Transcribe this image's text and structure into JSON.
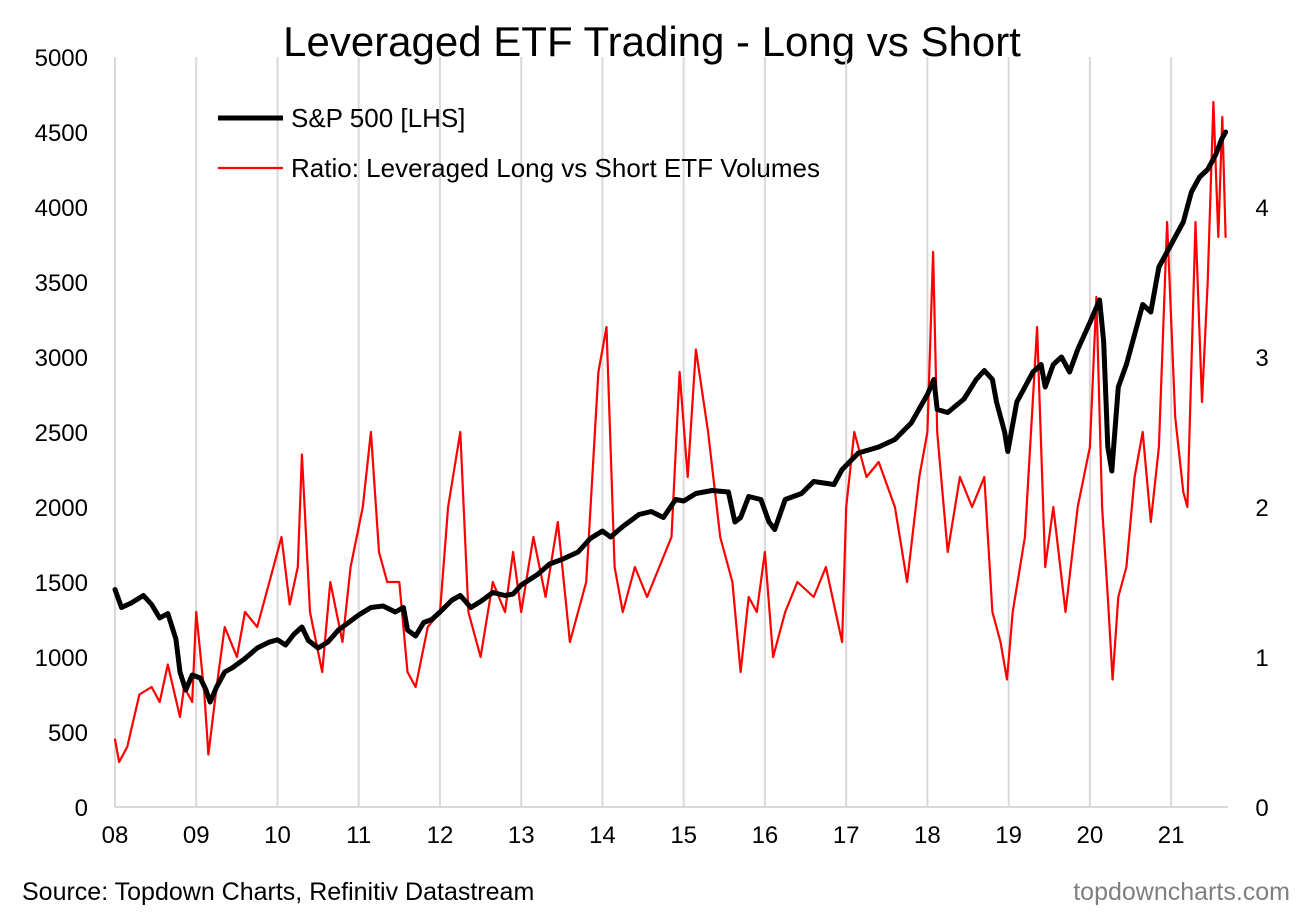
{
  "chart_data": {
    "type": "line",
    "title": "Leveraged ETF Trading - Long vs Short",
    "x_ticks": [
      "08",
      "09",
      "10",
      "11",
      "12",
      "13",
      "14",
      "15",
      "16",
      "17",
      "18",
      "19",
      "20",
      "21"
    ],
    "y_left": {
      "ticks": [
        0,
        500,
        1000,
        1500,
        2000,
        2500,
        3000,
        3500,
        4000,
        4500,
        5000
      ],
      "ylim": [
        0,
        5000
      ]
    },
    "y_right": {
      "ticks": [
        0,
        1,
        2,
        3,
        4
      ],
      "ylim": [
        0,
        5
      ]
    },
    "xlim": [
      2008.0,
      2021.7
    ],
    "grid": "vertical",
    "legend_position": "top-left",
    "series": [
      {
        "name": "S&P 500 [LHS]",
        "axis": "left",
        "color": "#000000",
        "points": [
          [
            2008.0,
            1450
          ],
          [
            2008.08,
            1330
          ],
          [
            2008.2,
            1360
          ],
          [
            2008.35,
            1410
          ],
          [
            2008.45,
            1350
          ],
          [
            2008.55,
            1260
          ],
          [
            2008.65,
            1290
          ],
          [
            2008.75,
            1120
          ],
          [
            2008.8,
            900
          ],
          [
            2008.87,
            780
          ],
          [
            2008.95,
            880
          ],
          [
            2009.05,
            860
          ],
          [
            2009.12,
            780
          ],
          [
            2009.17,
            700
          ],
          [
            2009.25,
            800
          ],
          [
            2009.35,
            900
          ],
          [
            2009.45,
            930
          ],
          [
            2009.6,
            990
          ],
          [
            2009.75,
            1060
          ],
          [
            2009.9,
            1100
          ],
          [
            2010.0,
            1115
          ],
          [
            2010.1,
            1080
          ],
          [
            2010.2,
            1150
          ],
          [
            2010.3,
            1200
          ],
          [
            2010.38,
            1110
          ],
          [
            2010.5,
            1060
          ],
          [
            2010.62,
            1100
          ],
          [
            2010.75,
            1180
          ],
          [
            2010.9,
            1240
          ],
          [
            2011.0,
            1280
          ],
          [
            2011.15,
            1330
          ],
          [
            2011.3,
            1340
          ],
          [
            2011.45,
            1300
          ],
          [
            2011.55,
            1330
          ],
          [
            2011.6,
            1180
          ],
          [
            2011.7,
            1140
          ],
          [
            2011.8,
            1230
          ],
          [
            2011.9,
            1250
          ],
          [
            2012.0,
            1300
          ],
          [
            2012.15,
            1380
          ],
          [
            2012.25,
            1410
          ],
          [
            2012.38,
            1330
          ],
          [
            2012.5,
            1370
          ],
          [
            2012.65,
            1430
          ],
          [
            2012.8,
            1410
          ],
          [
            2012.9,
            1420
          ],
          [
            2013.0,
            1480
          ],
          [
            2013.2,
            1550
          ],
          [
            2013.35,
            1620
          ],
          [
            2013.5,
            1650
          ],
          [
            2013.7,
            1700
          ],
          [
            2013.85,
            1790
          ],
          [
            2014.0,
            1840
          ],
          [
            2014.1,
            1800
          ],
          [
            2014.25,
            1870
          ],
          [
            2014.45,
            1950
          ],
          [
            2014.6,
            1970
          ],
          [
            2014.75,
            1930
          ],
          [
            2014.9,
            2050
          ],
          [
            2015.0,
            2040
          ],
          [
            2015.15,
            2090
          ],
          [
            2015.35,
            2110
          ],
          [
            2015.55,
            2100
          ],
          [
            2015.63,
            1900
          ],
          [
            2015.7,
            1930
          ],
          [
            2015.8,
            2070
          ],
          [
            2015.95,
            2050
          ],
          [
            2016.05,
            1900
          ],
          [
            2016.12,
            1850
          ],
          [
            2016.25,
            2050
          ],
          [
            2016.45,
            2090
          ],
          [
            2016.6,
            2170
          ],
          [
            2016.85,
            2150
          ],
          [
            2016.95,
            2250
          ],
          [
            2017.15,
            2360
          ],
          [
            2017.4,
            2400
          ],
          [
            2017.6,
            2450
          ],
          [
            2017.8,
            2560
          ],
          [
            2018.0,
            2750
          ],
          [
            2018.08,
            2850
          ],
          [
            2018.12,
            2650
          ],
          [
            2018.25,
            2630
          ],
          [
            2018.45,
            2720
          ],
          [
            2018.6,
            2850
          ],
          [
            2018.7,
            2910
          ],
          [
            2018.8,
            2850
          ],
          [
            2018.85,
            2700
          ],
          [
            2018.95,
            2500
          ],
          [
            2018.99,
            2370
          ],
          [
            2019.1,
            2700
          ],
          [
            2019.3,
            2900
          ],
          [
            2019.4,
            2950
          ],
          [
            2019.45,
            2800
          ],
          [
            2019.55,
            2950
          ],
          [
            2019.65,
            3000
          ],
          [
            2019.75,
            2900
          ],
          [
            2019.85,
            3050
          ],
          [
            2020.0,
            3230
          ],
          [
            2020.12,
            3380
          ],
          [
            2020.17,
            3100
          ],
          [
            2020.22,
            2400
          ],
          [
            2020.27,
            2240
          ],
          [
            2020.35,
            2800
          ],
          [
            2020.45,
            2950
          ],
          [
            2020.55,
            3150
          ],
          [
            2020.65,
            3350
          ],
          [
            2020.75,
            3300
          ],
          [
            2020.85,
            3600
          ],
          [
            2021.0,
            3750
          ],
          [
            2021.15,
            3900
          ],
          [
            2021.25,
            4100
          ],
          [
            2021.35,
            4200
          ],
          [
            2021.45,
            4250
          ],
          [
            2021.55,
            4350
          ],
          [
            2021.62,
            4450
          ],
          [
            2021.67,
            4500
          ]
        ]
      },
      {
        "name": "Ratio: Leveraged Long vs Short ETF Volumes",
        "axis": "right",
        "color": "#ff0000",
        "points": [
          [
            2008.0,
            0.45
          ],
          [
            2008.05,
            0.3
          ],
          [
            2008.15,
            0.4
          ],
          [
            2008.3,
            0.75
          ],
          [
            2008.45,
            0.8
          ],
          [
            2008.55,
            0.7
          ],
          [
            2008.65,
            0.95
          ],
          [
            2008.8,
            0.6
          ],
          [
            2008.85,
            0.8
          ],
          [
            2008.95,
            0.7
          ],
          [
            2009.0,
            1.3
          ],
          [
            2009.1,
            0.75
          ],
          [
            2009.15,
            0.35
          ],
          [
            2009.25,
            0.8
          ],
          [
            2009.35,
            1.2
          ],
          [
            2009.5,
            1.0
          ],
          [
            2009.6,
            1.3
          ],
          [
            2009.75,
            1.2
          ],
          [
            2009.9,
            1.5
          ],
          [
            2010.05,
            1.8
          ],
          [
            2010.15,
            1.35
          ],
          [
            2010.25,
            1.6
          ],
          [
            2010.3,
            2.35
          ],
          [
            2010.4,
            1.3
          ],
          [
            2010.55,
            0.9
          ],
          [
            2010.65,
            1.5
          ],
          [
            2010.8,
            1.1
          ],
          [
            2010.9,
            1.6
          ],
          [
            2011.05,
            2.0
          ],
          [
            2011.15,
            2.5
          ],
          [
            2011.25,
            1.7
          ],
          [
            2011.35,
            1.5
          ],
          [
            2011.5,
            1.5
          ],
          [
            2011.6,
            0.9
          ],
          [
            2011.7,
            0.8
          ],
          [
            2011.85,
            1.2
          ],
          [
            2012.0,
            1.3
          ],
          [
            2012.1,
            2.0
          ],
          [
            2012.25,
            2.5
          ],
          [
            2012.35,
            1.3
          ],
          [
            2012.5,
            1.0
          ],
          [
            2012.65,
            1.5
          ],
          [
            2012.8,
            1.3
          ],
          [
            2012.9,
            1.7
          ],
          [
            2013.0,
            1.3
          ],
          [
            2013.15,
            1.8
          ],
          [
            2013.3,
            1.4
          ],
          [
            2013.45,
            1.9
          ],
          [
            2013.6,
            1.1
          ],
          [
            2013.8,
            1.5
          ],
          [
            2013.95,
            2.9
          ],
          [
            2014.05,
            3.2
          ],
          [
            2014.15,
            1.6
          ],
          [
            2014.25,
            1.3
          ],
          [
            2014.4,
            1.6
          ],
          [
            2014.55,
            1.4
          ],
          [
            2014.7,
            1.6
          ],
          [
            2014.85,
            1.8
          ],
          [
            2014.95,
            2.9
          ],
          [
            2015.05,
            2.2
          ],
          [
            2015.15,
            3.05
          ],
          [
            2015.3,
            2.5
          ],
          [
            2015.45,
            1.8
          ],
          [
            2015.6,
            1.5
          ],
          [
            2015.7,
            0.9
          ],
          [
            2015.8,
            1.4
          ],
          [
            2015.9,
            1.3
          ],
          [
            2016.0,
            1.7
          ],
          [
            2016.1,
            1.0
          ],
          [
            2016.25,
            1.3
          ],
          [
            2016.4,
            1.5
          ],
          [
            2016.6,
            1.4
          ],
          [
            2016.75,
            1.6
          ],
          [
            2016.95,
            1.1
          ],
          [
            2017.0,
            2.0
          ],
          [
            2017.1,
            2.5
          ],
          [
            2017.25,
            2.2
          ],
          [
            2017.4,
            2.3
          ],
          [
            2017.6,
            2.0
          ],
          [
            2017.75,
            1.5
          ],
          [
            2017.9,
            2.2
          ],
          [
            2018.0,
            2.5
          ],
          [
            2018.07,
            3.7
          ],
          [
            2018.12,
            2.5
          ],
          [
            2018.25,
            1.7
          ],
          [
            2018.4,
            2.2
          ],
          [
            2018.55,
            2.0
          ],
          [
            2018.7,
            2.2
          ],
          [
            2018.8,
            1.3
          ],
          [
            2018.9,
            1.1
          ],
          [
            2018.98,
            0.85
          ],
          [
            2019.05,
            1.3
          ],
          [
            2019.2,
            1.8
          ],
          [
            2019.35,
            3.2
          ],
          [
            2019.45,
            1.6
          ],
          [
            2019.55,
            2.0
          ],
          [
            2019.7,
            1.3
          ],
          [
            2019.85,
            2.0
          ],
          [
            2020.0,
            2.4
          ],
          [
            2020.08,
            3.4
          ],
          [
            2020.15,
            2.0
          ],
          [
            2020.22,
            1.4
          ],
          [
            2020.28,
            0.85
          ],
          [
            2020.35,
            1.4
          ],
          [
            2020.45,
            1.6
          ],
          [
            2020.55,
            2.2
          ],
          [
            2020.65,
            2.5
          ],
          [
            2020.75,
            1.9
          ],
          [
            2020.85,
            2.4
          ],
          [
            2020.95,
            3.9
          ],
          [
            2021.05,
            2.6
          ],
          [
            2021.15,
            2.1
          ],
          [
            2021.2,
            2.0
          ],
          [
            2021.3,
            3.9
          ],
          [
            2021.38,
            2.7
          ],
          [
            2021.45,
            3.5
          ],
          [
            2021.52,
            4.7
          ],
          [
            2021.58,
            3.8
          ],
          [
            2021.63,
            4.6
          ],
          [
            2021.67,
            3.8
          ]
        ]
      }
    ]
  },
  "footer": {
    "source": "Source: Topdown Charts, Refinitiv Datastream",
    "brand": "topdowncharts.com"
  }
}
